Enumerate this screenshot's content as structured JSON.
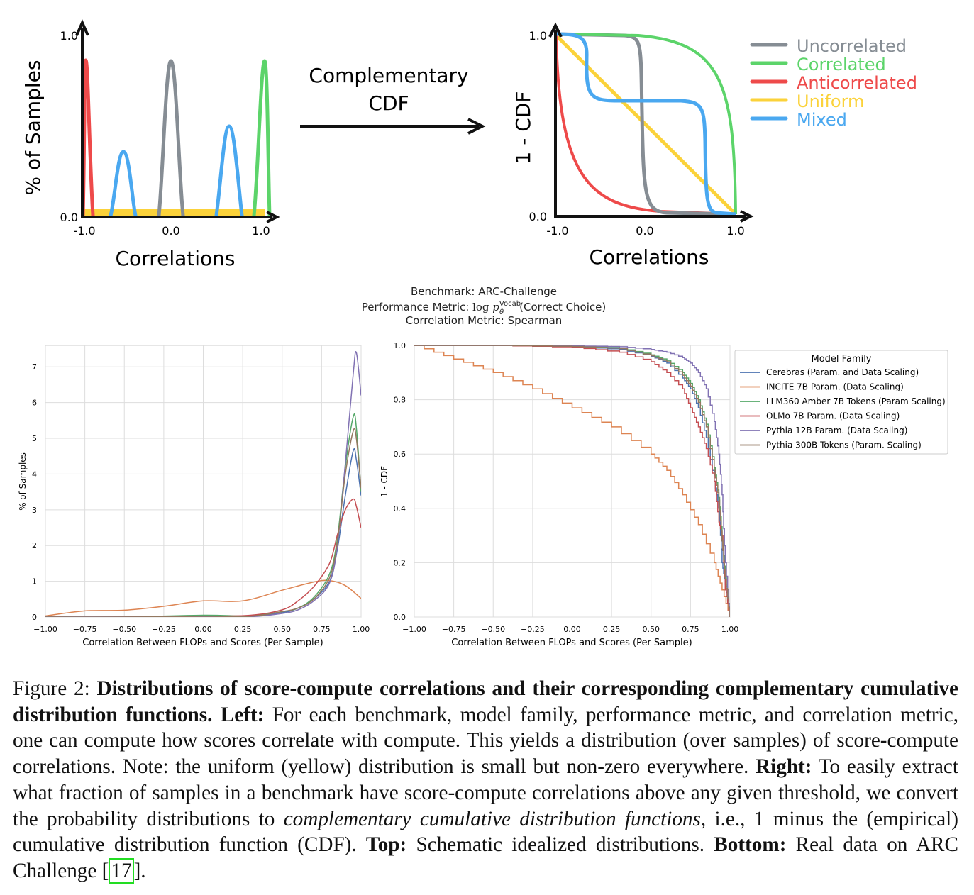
{
  "top": {
    "left_panel": {
      "ylabel": "% of Samples",
      "xlabel": "Correlations",
      "xticks": [
        "-1.0",
        "0.0",
        "1.0"
      ],
      "yticks": [
        "0.0",
        "1.0"
      ]
    },
    "arrow_label_line1": "Complementary",
    "arrow_label_line2": "CDF",
    "right_panel": {
      "ylabel": "1 - CDF",
      "xlabel": "Correlations",
      "xticks": [
        "-1.0",
        "0.0",
        "1.0"
      ],
      "yticks": [
        "0.0",
        "1.0"
      ]
    },
    "legend": [
      {
        "label": "Uncorrelated",
        "color": "#868d94"
      },
      {
        "label": "Correlated",
        "color": "#5cd46a"
      },
      {
        "label": "Anticorrelated",
        "color": "#ee4a4a"
      },
      {
        "label": "Uniform",
        "color": "#fbd23a"
      },
      {
        "label": "Mixed",
        "color": "#4aa8f0"
      }
    ]
  },
  "header": {
    "benchmark": "Benchmark: ARC-Challenge",
    "metric_prefix": "Performance Metric: ",
    "metric_log": "log",
    "metric_p": "p",
    "metric_sup": "Vocab",
    "metric_sub": "θ",
    "metric_suffix": "(Correct Choice)",
    "correlation": "Correlation Metric: Spearman"
  },
  "chart_data": [
    {
      "type": "line",
      "xlabel": "Correlation Between FLOPs and Scores (Per Sample)",
      "ylabel": "% of Samples",
      "xlim": [
        -1.0,
        1.0
      ],
      "ylim": [
        0,
        7.6
      ],
      "xticks": [
        "−1.00",
        "−0.75",
        "−0.50",
        "−0.25",
        "0.00",
        "0.25",
        "0.50",
        "0.75",
        "1.00"
      ],
      "yticks": [
        "0",
        "1",
        "2",
        "3",
        "4",
        "5",
        "6",
        "7"
      ],
      "grid": true,
      "series": [
        {
          "name": "Cerebras (Param. and Data Scaling)",
          "color": "#4c72b0",
          "x": [
            -1.0,
            -0.5,
            0.0,
            0.3,
            0.5,
            0.6,
            0.7,
            0.8,
            0.85,
            0.9,
            0.95,
            0.97,
            1.0
          ],
          "y": [
            0,
            0,
            0.01,
            0.02,
            0.12,
            0.25,
            0.5,
            1.0,
            1.9,
            3.4,
            4.65,
            4.4,
            3.4
          ]
        },
        {
          "name": "INCITE 7B Param. (Data Scaling)",
          "color": "#dd8452",
          "x": [
            -1.0,
            -0.75,
            -0.5,
            -0.25,
            0.0,
            0.25,
            0.5,
            0.7,
            0.8,
            0.9,
            1.0
          ],
          "y": [
            0.03,
            0.17,
            0.19,
            0.3,
            0.45,
            0.45,
            0.75,
            0.98,
            1.02,
            0.88,
            0.52
          ]
        },
        {
          "name": "LLM360 Amber 7B Tokens (Param Scaling)",
          "color": "#55a868",
          "x": [
            -1.0,
            -0.5,
            0.0,
            0.3,
            0.5,
            0.6,
            0.7,
            0.8,
            0.85,
            0.9,
            0.95,
            0.97,
            1.0
          ],
          "y": [
            0,
            0,
            0.05,
            0.03,
            0.15,
            0.25,
            0.55,
            1.2,
            2.2,
            4.2,
            5.6,
            5.3,
            3.5
          ]
        },
        {
          "name": "OLMo 7B Param. (Data Scaling)",
          "color": "#c44e52",
          "x": [
            -1.0,
            -0.5,
            0.0,
            0.3,
            0.5,
            0.6,
            0.7,
            0.8,
            0.85,
            0.9,
            0.95,
            0.97,
            1.0
          ],
          "y": [
            0,
            0,
            0.02,
            0.05,
            0.2,
            0.45,
            0.85,
            1.5,
            2.3,
            3.0,
            3.3,
            3.1,
            2.5
          ]
        },
        {
          "name": "Pythia 12B Param. (Data Scaling)",
          "color": "#8172b3",
          "x": [
            -1.0,
            -0.5,
            0.0,
            0.3,
            0.5,
            0.6,
            0.7,
            0.8,
            0.85,
            0.9,
            0.95,
            0.97,
            1.0
          ],
          "y": [
            0,
            0,
            0.01,
            0.01,
            0.1,
            0.2,
            0.45,
            0.95,
            2.0,
            4.3,
            6.8,
            7.4,
            6.2
          ]
        },
        {
          "name": "Pythia 300B Tokens (Param. Scaling)",
          "color": "#937860",
          "x": [
            -1.0,
            -0.5,
            0.0,
            0.3,
            0.5,
            0.6,
            0.7,
            0.8,
            0.85,
            0.9,
            0.95,
            0.97,
            1.0
          ],
          "y": [
            0,
            0,
            0.02,
            0.02,
            0.15,
            0.25,
            0.5,
            1.1,
            2.1,
            4.0,
            5.2,
            5.0,
            3.6
          ]
        }
      ]
    },
    {
      "type": "line",
      "xlabel": "Correlation Between FLOPs and Scores (Per Sample)",
      "ylabel": "1 - CDF",
      "xlim": [
        -1.0,
        1.0
      ],
      "ylim": [
        0,
        1.0
      ],
      "xticks": [
        "−1.00",
        "−0.75",
        "−0.50",
        "−0.25",
        "0.00",
        "0.25",
        "0.50",
        "0.75",
        "1.00"
      ],
      "yticks": [
        "0.0",
        "0.2",
        "0.4",
        "0.6",
        "0.8",
        "1.0"
      ],
      "grid": true,
      "legend_title": "Model Family",
      "legend_position": "upper right outside",
      "series": [
        {
          "name": "Cerebras (Param. and Data Scaling)",
          "color": "#4c72b0",
          "x": [
            -1.0,
            -0.5,
            0.0,
            0.3,
            0.5,
            0.6,
            0.7,
            0.75,
            0.8,
            0.85,
            0.9,
            0.93,
            0.95,
            0.97,
            1.0
          ],
          "y": [
            1.0,
            1.0,
            0.995,
            0.985,
            0.96,
            0.935,
            0.88,
            0.84,
            0.77,
            0.66,
            0.5,
            0.4,
            0.2,
            0.12,
            0.0
          ]
        },
        {
          "name": "INCITE 7B Param. (Data Scaling)",
          "color": "#dd8452",
          "x": [
            -1.0,
            -0.75,
            -0.5,
            -0.25,
            0.0,
            0.25,
            0.5,
            0.6,
            0.7,
            0.8,
            0.9,
            0.95,
            1.0
          ],
          "y": [
            1.0,
            0.95,
            0.9,
            0.84,
            0.77,
            0.7,
            0.6,
            0.54,
            0.45,
            0.34,
            0.2,
            0.1,
            0.0
          ]
        },
        {
          "name": "LLM360 Amber 7B Tokens (Param Scaling)",
          "color": "#55a868",
          "x": [
            -1.0,
            -0.5,
            0.0,
            0.3,
            0.5,
            0.6,
            0.7,
            0.75,
            0.8,
            0.85,
            0.9,
            0.93,
            0.95,
            0.97,
            1.0
          ],
          "y": [
            1.0,
            1.0,
            0.997,
            0.99,
            0.965,
            0.945,
            0.9,
            0.86,
            0.8,
            0.71,
            0.55,
            0.44,
            0.3,
            0.15,
            0.0
          ]
        },
        {
          "name": "OLMo 7B Param. (Data Scaling)",
          "color": "#c44e52",
          "x": [
            -1.0,
            -0.5,
            0.0,
            0.3,
            0.5,
            0.6,
            0.7,
            0.75,
            0.8,
            0.85,
            0.9,
            0.93,
            0.95,
            0.97,
            1.0
          ],
          "y": [
            1.0,
            1.0,
            0.993,
            0.975,
            0.94,
            0.9,
            0.84,
            0.77,
            0.7,
            0.62,
            0.5,
            0.35,
            0.3,
            0.1,
            0.0
          ]
        },
        {
          "name": "Pythia 12B Param. (Data Scaling)",
          "color": "#8172b3",
          "x": [
            -1.0,
            -0.5,
            0.0,
            0.3,
            0.5,
            0.6,
            0.7,
            0.75,
            0.8,
            0.85,
            0.9,
            0.93,
            0.95,
            0.97,
            1.0
          ],
          "y": [
            1.0,
            1.0,
            0.998,
            0.995,
            0.985,
            0.975,
            0.955,
            0.935,
            0.9,
            0.84,
            0.72,
            0.6,
            0.45,
            0.2,
            0.0
          ]
        },
        {
          "name": "Pythia 300B Tokens (Param. Scaling)",
          "color": "#937860",
          "x": [
            -1.0,
            -0.5,
            0.0,
            0.3,
            0.5,
            0.6,
            0.7,
            0.75,
            0.8,
            0.85,
            0.9,
            0.93,
            0.95,
            0.97,
            1.0
          ],
          "y": [
            1.0,
            1.0,
            0.996,
            0.988,
            0.962,
            0.94,
            0.89,
            0.85,
            0.79,
            0.7,
            0.54,
            0.43,
            0.28,
            0.14,
            0.0
          ]
        }
      ]
    }
  ],
  "caption": {
    "fig_label": "Figure 2: ",
    "title_bold": "Distributions of score-compute correlations and their corresponding complementary cumulative distribution functions.",
    "left_bold": "Left:",
    "left_text": "For each benchmark, model family, performance metric, and correlation metric, one can compute how scores correlate with compute. This yields a distribution (over samples) of score-compute correlations. Note: the uniform (yellow) distribution is small but non-zero everywhere.",
    "right_bold": "Right:",
    "right_text_1": "To easily extract what fraction of samples in a benchmark have score-compute correlations above any given threshold, we convert the probability distributions to",
    "right_italic": "complementary cumulative distribution functions",
    "right_text_2": ", i.e., 1 minus the (empirical) cumulative distribution function (CDF).",
    "top_bold": "Top:",
    "top_text": "Schematic idealized distributions.",
    "bottom_bold": "Bottom:",
    "bottom_text": "Real data on ARC Challenge",
    "ref": "17",
    "end": "."
  }
}
